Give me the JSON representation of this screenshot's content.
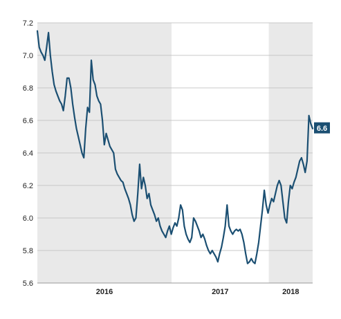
{
  "chart_data": {
    "type": "line",
    "title": "",
    "xlabel": "",
    "ylabel": "",
    "ylim": [
      5.6,
      7.2
    ],
    "yticks": [
      "7.2",
      "7.0",
      "6.8",
      "6.6",
      "6.4",
      "6.2",
      "6.0",
      "5.8",
      "5.6"
    ],
    "grid": true,
    "legend": "none",
    "x_range": [
      "2015-08-14",
      "2018-06-15"
    ],
    "year_bands": [
      {
        "label": "2016",
        "start": "2015-08-14",
        "end": "2016-12-31",
        "shaded": true
      },
      {
        "label": "2017",
        "start": "2017-01-01",
        "end": "2017-12-31",
        "shaded": false
      },
      {
        "label": "2018",
        "start": "2018-01-01",
        "end": "2018-06-15",
        "shaded": true
      }
    ],
    "last_value_label": "6.6",
    "colors": {
      "line": "#1b4f72",
      "shade": "#e9e9e9",
      "grid": "#c8c8c8",
      "label_bg": "#1b4f72",
      "text": "#222222"
    },
    "series": [
      {
        "points": [
          [
            "2015-08-14",
            7.15
          ],
          [
            "2015-08-21",
            7.05
          ],
          [
            "2015-08-28",
            7.02
          ],
          [
            "2015-09-04",
            7.0
          ],
          [
            "2015-09-11",
            6.97
          ],
          [
            "2015-09-18",
            7.05
          ],
          [
            "2015-09-25",
            7.14
          ],
          [
            "2015-10-02",
            7.0
          ],
          [
            "2015-10-09",
            6.9
          ],
          [
            "2015-10-16",
            6.82
          ],
          [
            "2015-10-23",
            6.78
          ],
          [
            "2015-10-30",
            6.75
          ],
          [
            "2015-11-06",
            6.72
          ],
          [
            "2015-11-13",
            6.7
          ],
          [
            "2015-11-20",
            6.66
          ],
          [
            "2015-11-27",
            6.75
          ],
          [
            "2015-12-04",
            6.86
          ],
          [
            "2015-12-11",
            6.86
          ],
          [
            "2015-12-18",
            6.8
          ],
          [
            "2015-12-25",
            6.7
          ],
          [
            "2016-01-01",
            6.62
          ],
          [
            "2016-01-08",
            6.55
          ],
          [
            "2016-01-15",
            6.5
          ],
          [
            "2016-01-22",
            6.45
          ],
          [
            "2016-01-29",
            6.4
          ],
          [
            "2016-02-05",
            6.37
          ],
          [
            "2016-02-12",
            6.55
          ],
          [
            "2016-02-19",
            6.68
          ],
          [
            "2016-02-26",
            6.65
          ],
          [
            "2016-03-04",
            6.97
          ],
          [
            "2016-03-11",
            6.85
          ],
          [
            "2016-03-18",
            6.82
          ],
          [
            "2016-03-25",
            6.75
          ],
          [
            "2016-04-01",
            6.72
          ],
          [
            "2016-04-08",
            6.7
          ],
          [
            "2016-04-15",
            6.6
          ],
          [
            "2016-04-22",
            6.45
          ],
          [
            "2016-04-29",
            6.52
          ],
          [
            "2016-05-06",
            6.48
          ],
          [
            "2016-05-13",
            6.44
          ],
          [
            "2016-05-20",
            6.42
          ],
          [
            "2016-05-27",
            6.4
          ],
          [
            "2016-06-03",
            6.3
          ],
          [
            "2016-06-10",
            6.27
          ],
          [
            "2016-06-17",
            6.25
          ],
          [
            "2016-06-24",
            6.23
          ],
          [
            "2016-07-01",
            6.22
          ],
          [
            "2016-07-08",
            6.18
          ],
          [
            "2016-07-15",
            6.15
          ],
          [
            "2016-07-22",
            6.12
          ],
          [
            "2016-07-29",
            6.08
          ],
          [
            "2016-08-05",
            6.02
          ],
          [
            "2016-08-12",
            5.98
          ],
          [
            "2016-08-19",
            6.0
          ],
          [
            "2016-08-26",
            6.15
          ],
          [
            "2016-09-02",
            6.33
          ],
          [
            "2016-09-09",
            6.18
          ],
          [
            "2016-09-16",
            6.25
          ],
          [
            "2016-09-23",
            6.2
          ],
          [
            "2016-09-30",
            6.12
          ],
          [
            "2016-10-07",
            6.15
          ],
          [
            "2016-10-14",
            6.08
          ],
          [
            "2016-10-21",
            6.05
          ],
          [
            "2016-10-28",
            6.02
          ],
          [
            "2016-11-04",
            5.98
          ],
          [
            "2016-11-11",
            6.0
          ],
          [
            "2016-11-18",
            5.95
          ],
          [
            "2016-11-25",
            5.92
          ],
          [
            "2016-12-02",
            5.9
          ],
          [
            "2016-12-09",
            5.88
          ],
          [
            "2016-12-16",
            5.92
          ],
          [
            "2016-12-23",
            5.95
          ],
          [
            "2016-12-30",
            5.9
          ],
          [
            "2017-01-06",
            5.94
          ],
          [
            "2017-01-13",
            5.97
          ],
          [
            "2017-01-20",
            5.95
          ],
          [
            "2017-01-27",
            6.0
          ],
          [
            "2017-02-03",
            6.08
          ],
          [
            "2017-02-10",
            6.05
          ],
          [
            "2017-02-17",
            5.95
          ],
          [
            "2017-02-24",
            5.9
          ],
          [
            "2017-03-03",
            5.87
          ],
          [
            "2017-03-10",
            5.85
          ],
          [
            "2017-03-17",
            5.88
          ],
          [
            "2017-03-24",
            6.0
          ],
          [
            "2017-03-31",
            5.98
          ],
          [
            "2017-04-07",
            5.95
          ],
          [
            "2017-04-14",
            5.92
          ],
          [
            "2017-04-21",
            5.88
          ],
          [
            "2017-04-28",
            5.9
          ],
          [
            "2017-05-05",
            5.87
          ],
          [
            "2017-05-12",
            5.83
          ],
          [
            "2017-05-19",
            5.8
          ],
          [
            "2017-05-26",
            5.78
          ],
          [
            "2017-06-02",
            5.8
          ],
          [
            "2017-06-09",
            5.78
          ],
          [
            "2017-06-16",
            5.76
          ],
          [
            "2017-06-23",
            5.73
          ],
          [
            "2017-06-30",
            5.78
          ],
          [
            "2017-07-07",
            5.82
          ],
          [
            "2017-07-14",
            5.88
          ],
          [
            "2017-07-21",
            5.95
          ],
          [
            "2017-07-28",
            6.08
          ],
          [
            "2017-08-04",
            5.95
          ],
          [
            "2017-08-11",
            5.92
          ],
          [
            "2017-08-18",
            5.9
          ],
          [
            "2017-08-25",
            5.92
          ],
          [
            "2017-09-01",
            5.93
          ],
          [
            "2017-09-08",
            5.92
          ],
          [
            "2017-09-15",
            5.93
          ],
          [
            "2017-09-22",
            5.9
          ],
          [
            "2017-09-29",
            5.85
          ],
          [
            "2017-10-06",
            5.78
          ],
          [
            "2017-10-13",
            5.72
          ],
          [
            "2017-10-20",
            5.73
          ],
          [
            "2017-10-27",
            5.75
          ],
          [
            "2017-11-03",
            5.73
          ],
          [
            "2017-11-10",
            5.72
          ],
          [
            "2017-11-17",
            5.78
          ],
          [
            "2017-11-24",
            5.85
          ],
          [
            "2017-12-01",
            5.95
          ],
          [
            "2017-12-08",
            6.05
          ],
          [
            "2017-12-15",
            6.17
          ],
          [
            "2017-12-22",
            6.08
          ],
          [
            "2017-12-29",
            6.03
          ],
          [
            "2018-01-05",
            6.08
          ],
          [
            "2018-01-12",
            6.12
          ],
          [
            "2018-01-19",
            6.1
          ],
          [
            "2018-01-26",
            6.15
          ],
          [
            "2018-02-02",
            6.2
          ],
          [
            "2018-02-09",
            6.23
          ],
          [
            "2018-02-16",
            6.2
          ],
          [
            "2018-02-23",
            6.1
          ],
          [
            "2018-03-02",
            6.0
          ],
          [
            "2018-03-09",
            5.97
          ],
          [
            "2018-03-16",
            6.1
          ],
          [
            "2018-03-23",
            6.2
          ],
          [
            "2018-03-30",
            6.18
          ],
          [
            "2018-04-06",
            6.22
          ],
          [
            "2018-04-13",
            6.25
          ],
          [
            "2018-04-20",
            6.3
          ],
          [
            "2018-04-27",
            6.35
          ],
          [
            "2018-05-04",
            6.37
          ],
          [
            "2018-05-11",
            6.33
          ],
          [
            "2018-05-18",
            6.28
          ],
          [
            "2018-05-25",
            6.35
          ],
          [
            "2018-06-01",
            6.63
          ],
          [
            "2018-06-08",
            6.58
          ],
          [
            "2018-06-15",
            6.55
          ]
        ]
      }
    ]
  }
}
